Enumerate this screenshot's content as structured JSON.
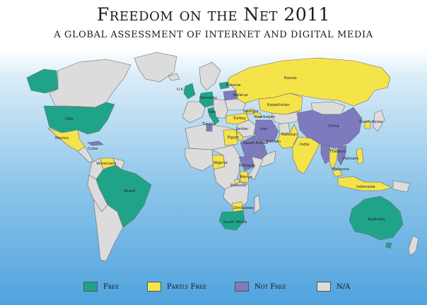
{
  "title": "Freedom on the Net 2011",
  "subtitle": "A GLOBAL ASSESSMENT OF INTERNET AND DIGITAL MEDIA",
  "colors": {
    "free": "#1fa48a",
    "partly_free": "#f5e34a",
    "not_free": "#7c7bbd",
    "na": "#dcdcdc"
  },
  "legend": [
    {
      "key": "free",
      "label": "Free"
    },
    {
      "key": "partly_free",
      "label": "Partly Free"
    },
    {
      "key": "not_free",
      "label": "Not Free"
    },
    {
      "key": "na",
      "label": "N/A"
    }
  ],
  "country_labels": {
    "usa": "USA",
    "mexico": "Mexico",
    "cuba": "Cuba",
    "venezuela": "Venezuela",
    "brazil": "Brazil",
    "uk": "U.K.",
    "estonia": "Estonia",
    "belarus": "Belarus",
    "russia": "Russia",
    "germany": "Germany",
    "italy": "Italy",
    "tunisia": "Tunisia",
    "turkey": "Turkey",
    "georgia": "Georgia",
    "azerbaijan": "Azerbaijan",
    "kazakhstan": "Kazakhstan",
    "jordan": "Jordan",
    "iran": "Iran",
    "pakistan": "Pakistan",
    "china": "China",
    "egypt": "Egypt",
    "saudi_arabia": "Saudi Arabia",
    "bahrain": "Bahrain",
    "india": "India",
    "thailand": "Thailand",
    "vietnam": "Vietnam",
    "south_korea": "South Korea",
    "malaysia": "Malaysia",
    "indonesia": "Indonesia",
    "nigeria": "Nigeria",
    "ethiopia": "Ethiopia",
    "kenya": "Kenya",
    "rwanda": "Rwanda",
    "zimbabwe": "Zimbabwe",
    "south_africa": "South Africa",
    "australia": "Australia"
  }
}
